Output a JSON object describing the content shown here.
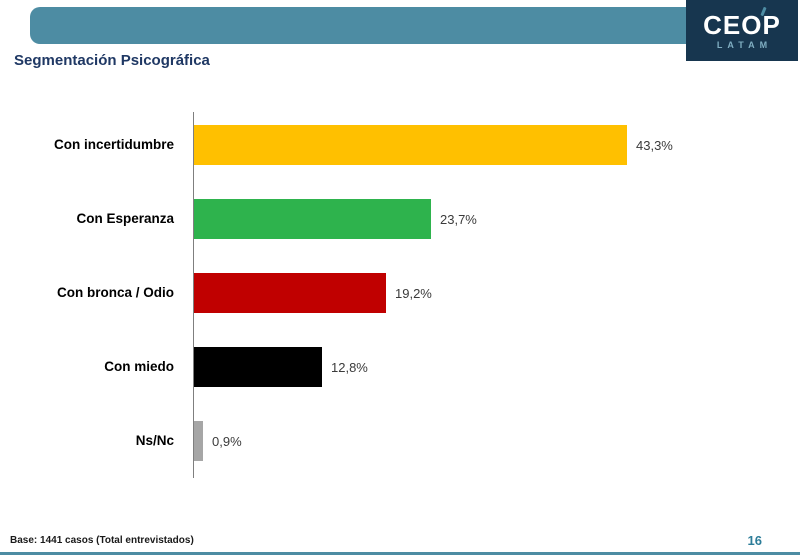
{
  "logo": {
    "brand": "CEOP",
    "subtitle": "LATAM"
  },
  "slide": {
    "title": "Segmentación Psicográfica"
  },
  "chart_data": {
    "type": "bar",
    "orientation": "horizontal",
    "title": "Segmentación Psicográfica",
    "categories": [
      "Con incertidumbre",
      "Con Esperanza",
      "Con bronca / Odio",
      "Con miedo",
      "Ns/Nc"
    ],
    "values": [
      43.3,
      23.7,
      19.2,
      12.8,
      0.9
    ],
    "value_labels": [
      "43,3%",
      "23,7%",
      "19,2%",
      "12,8%",
      "0,9%"
    ],
    "bar_colors": [
      "#FFC000",
      "#2EB34D",
      "#C00000",
      "#000000",
      "#A6A6A6"
    ],
    "xlim": [
      0,
      50
    ],
    "grid": false,
    "legend": false
  },
  "footer": {
    "base_note": "Base: 1441 casos (Total entrevistados)",
    "page_number": "16"
  },
  "colors": {
    "header_teal": "#4D8CA3",
    "navy": "#17364F",
    "title_navy": "#1F3864",
    "page_number": "#2D7D99"
  }
}
